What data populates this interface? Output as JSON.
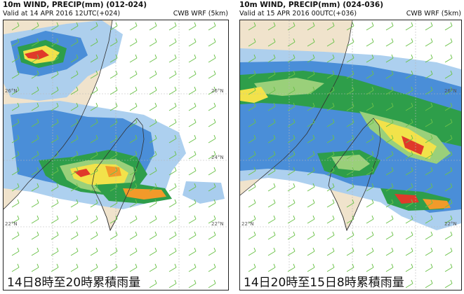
{
  "panels": [
    {
      "title": "10m WIND, PRECIP(mm) (012-024)",
      "valid": "Valid at 14 APR 2016 12UTC(+024)",
      "model": "CWB WRF (5km)",
      "caption": "14日8時至20時累積雨量",
      "lat_labels": [
        "26°N",
        "24°N",
        "22°N"
      ]
    },
    {
      "title": "10m WIND, PRECIP(mm) (024-036)",
      "valid": "Valid at 15 APR 2016 00UTC(+036)",
      "model": "CWB WRF (5km)",
      "caption": "14日20時至15日8時累積雨量",
      "lat_labels": [
        "26°N",
        "24°N",
        "22°N"
      ]
    }
  ],
  "colors": {
    "light_blue": "#a9cdee",
    "blue": "#4a8ed8",
    "green": "#2e9e4a",
    "light_green": "#9ad07a",
    "yellow": "#f2e24a",
    "orange": "#f29a2a",
    "red": "#e03a2a",
    "land": "#f0e3cc",
    "wind_barb": "#6cc24a",
    "grid": "#b8b8b8"
  }
}
